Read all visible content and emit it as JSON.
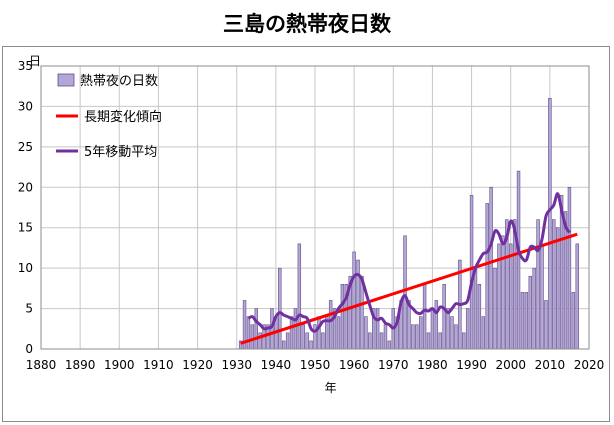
{
  "title": "三島の熱帯夜日数",
  "chart_data": {
    "type": "bar",
    "title": "三島の熱帯夜日数",
    "xlabel": "年",
    "ylabel": "日",
    "xlim": [
      1880,
      2020
    ],
    "ylim": [
      0,
      35
    ],
    "xticks": [
      1880,
      1890,
      1900,
      1910,
      1920,
      1930,
      1940,
      1950,
      1960,
      1970,
      1980,
      1990,
      2000,
      2010,
      2020
    ],
    "yticks": [
      0,
      5,
      10,
      15,
      20,
      25,
      30,
      35
    ],
    "legend_position": "top-left",
    "grid": true,
    "colors": {
      "bar_fill": "#b4a7d6",
      "bar_edge": "#5f4b8b",
      "trend": "#ff0000",
      "moving_average": "#7030a0",
      "grid": "#c8c8c8"
    },
    "series": [
      {
        "name": "熱帯夜の日数",
        "type": "bar",
        "x": [
          1931,
          1932,
          1933,
          1934,
          1935,
          1936,
          1937,
          1938,
          1939,
          1940,
          1941,
          1942,
          1943,
          1944,
          1945,
          1946,
          1947,
          1948,
          1949,
          1950,
          1951,
          1952,
          1953,
          1954,
          1955,
          1956,
          1957,
          1958,
          1959,
          1960,
          1961,
          1962,
          1963,
          1964,
          1965,
          1966,
          1967,
          1968,
          1969,
          1970,
          1971,
          1972,
          1973,
          1974,
          1975,
          1976,
          1977,
          1978,
          1979,
          1980,
          1981,
          1982,
          1983,
          1984,
          1985,
          1986,
          1987,
          1988,
          1989,
          1990,
          1991,
          1992,
          1993,
          1994,
          1995,
          1996,
          1997,
          1998,
          1999,
          2000,
          2001,
          2002,
          2003,
          2004,
          2005,
          2006,
          2007,
          2008,
          2009,
          2010,
          2011,
          2012,
          2013,
          2014,
          2015,
          2016,
          2017
        ],
        "values": [
          1,
          6,
          4,
          3,
          5,
          2,
          3,
          3,
          5,
          4,
          10,
          1,
          2,
          4,
          5,
          13,
          3,
          2,
          1,
          3,
          4,
          2,
          4,
          6,
          5,
          4,
          8,
          8,
          9,
          12,
          11,
          9,
          4,
          2,
          5,
          5,
          2,
          3,
          1,
          5,
          4,
          6,
          14,
          6,
          3,
          3,
          4,
          8,
          2,
          5,
          6,
          2,
          8,
          5,
          4,
          3,
          11,
          2,
          5,
          19,
          10,
          8,
          4,
          18,
          20,
          10,
          13,
          14,
          16,
          13,
          16,
          22,
          7,
          7,
          9,
          10,
          16,
          13,
          6,
          31,
          16,
          15,
          19,
          17,
          20,
          7,
          13
        ]
      },
      {
        "name": "長期変化傾向",
        "type": "line",
        "x": [
          1931,
          2017
        ],
        "values": [
          0.7,
          14.2
        ]
      },
      {
        "name": "5年移動平均",
        "type": "line",
        "x": [
          1933,
          1934,
          1935,
          1936,
          1937,
          1938,
          1939,
          1940,
          1941,
          1942,
          1943,
          1944,
          1945,
          1946,
          1947,
          1948,
          1949,
          1950,
          1951,
          1952,
          1953,
          1954,
          1955,
          1956,
          1957,
          1958,
          1959,
          1960,
          1961,
          1962,
          1963,
          1964,
          1965,
          1966,
          1967,
          1968,
          1969,
          1970,
          1971,
          1972,
          1973,
          1974,
          1975,
          1976,
          1977,
          1978,
          1979,
          1980,
          1981,
          1982,
          1983,
          1984,
          1985,
          1986,
          1987,
          1988,
          1989,
          1990,
          1991,
          1992,
          1993,
          1994,
          1995,
          1996,
          1997,
          1998,
          1999,
          2000,
          2001,
          2002,
          2003,
          2004,
          2005,
          2006,
          2007,
          2008,
          2009,
          2010,
          2011,
          2012,
          2013,
          2014,
          2015
        ],
        "values": [
          3.8,
          4.0,
          3.4,
          3.0,
          2.5,
          2.6,
          2.8,
          4.0,
          4.5,
          4.2,
          4.0,
          3.8,
          3.6,
          4.2,
          4.0,
          3.8,
          2.5,
          2.2,
          2.7,
          3.4,
          3.5,
          3.5,
          4.0,
          5.0,
          5.6,
          6.4,
          8.0,
          9.0,
          9.2,
          8.6,
          7.0,
          5.4,
          4.0,
          3.6,
          3.8,
          3.2,
          3.0,
          2.6,
          3.4,
          5.8,
          6.6,
          5.5,
          5.0,
          4.5,
          4.4,
          4.8,
          4.7,
          5.0,
          4.5,
          5.2,
          5.0,
          4.5,
          5.0,
          5.6,
          5.5,
          5.6,
          6.0,
          8.2,
          10.0,
          11.0,
          11.8,
          12.0,
          13.0,
          14.6,
          14.2,
          13.0,
          13.8,
          15.8,
          14.8,
          12.2,
          11.2,
          11.0,
          12.6,
          12.6,
          12.2,
          13.6,
          16.4,
          17.2,
          17.8,
          19.2,
          17.2,
          15.2,
          14.4
        ]
      }
    ]
  }
}
